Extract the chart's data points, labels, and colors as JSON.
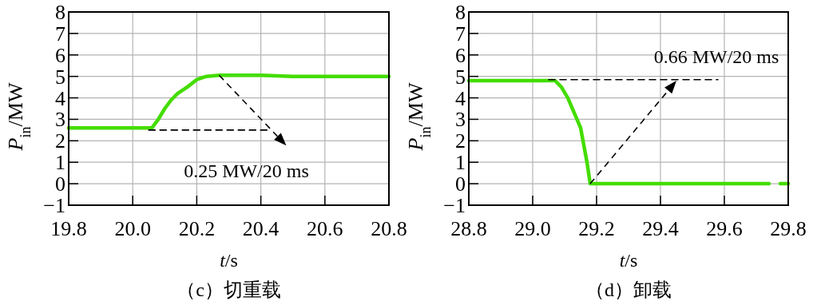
{
  "chart_data": [
    {
      "type": "line",
      "title": "（c）切重载",
      "xlabel": "*t*/s",
      "ylabel": "*P*$_{in}$/MW",
      "xlim": [
        19.8,
        20.8
      ],
      "ylim": [
        -1,
        8
      ],
      "xticks": [
        19.8,
        {
          "value": 20,
          "label": "20.0"
        },
        20.2,
        20.4,
        20.6,
        20.8
      ],
      "yticks": [
        -1,
        0,
        1,
        2,
        3,
        4,
        5,
        6,
        7,
        8
      ],
      "grid": true,
      "series": [
        {
          "color": "#44dd00",
          "x": [
            19.8,
            19.9,
            20.0,
            20.06,
            20.08,
            20.1,
            20.12,
            20.14,
            20.17,
            20.2,
            20.23,
            20.27,
            20.4,
            20.5,
            20.6,
            20.7,
            20.8
          ],
          "values": [
            2.6,
            2.6,
            2.6,
            2.6,
            3.0,
            3.5,
            3.9,
            4.2,
            4.5,
            4.85,
            5.0,
            5.05,
            5.05,
            5.0,
            5.0,
            5.0,
            5.0
          ]
        },
        {
          "color": "#000000",
          "line_style": "dashed",
          "x": [
            20.05,
            20.43
          ],
          "values": [
            2.5,
            2.5
          ]
        }
      ],
      "annotations": [
        {
          "text": "0.25 MW/20 ms",
          "x": 20.27,
          "y": 5.05
        }
      ]
    },
    {
      "type": "line",
      "title": "（d）卸载",
      "xlabel": "*t*/s",
      "ylabel": "*P*$_{in}$/MW",
      "xlim": [
        28.8,
        29.8
      ],
      "ylim": [
        -1,
        8
      ],
      "xticks": [
        28.8,
        {
          "value": 29,
          "label": "29.0"
        },
        29.2,
        29.4,
        29.6,
        29.8
      ],
      "yticks": [
        -1,
        0,
        1,
        2,
        3,
        4,
        5,
        6,
        7,
        8
      ],
      "grid": true,
      "series": [
        {
          "color": "#44dd00",
          "x": [
            28.8,
            29.0,
            29.07,
            29.09,
            29.11,
            29.13,
            29.15,
            29.17,
            29.18,
            29.5,
            29.74,
            29.76,
            29.775,
            29.8
          ],
          "values": [
            4.8,
            4.8,
            4.8,
            4.5,
            4.0,
            3.3,
            2.6,
            1.0,
            0,
            0,
            0,
            null,
            0,
            0
          ]
        },
        {
          "color": "#000000",
          "line_style": "dashed",
          "x": [
            29.05,
            29.58
          ],
          "values": [
            4.85,
            4.85
          ]
        }
      ],
      "annotations": [
        {
          "text": "0.66 MW/20 ms",
          "x": 29.18,
          "y": 0
        }
      ]
    }
  ]
}
